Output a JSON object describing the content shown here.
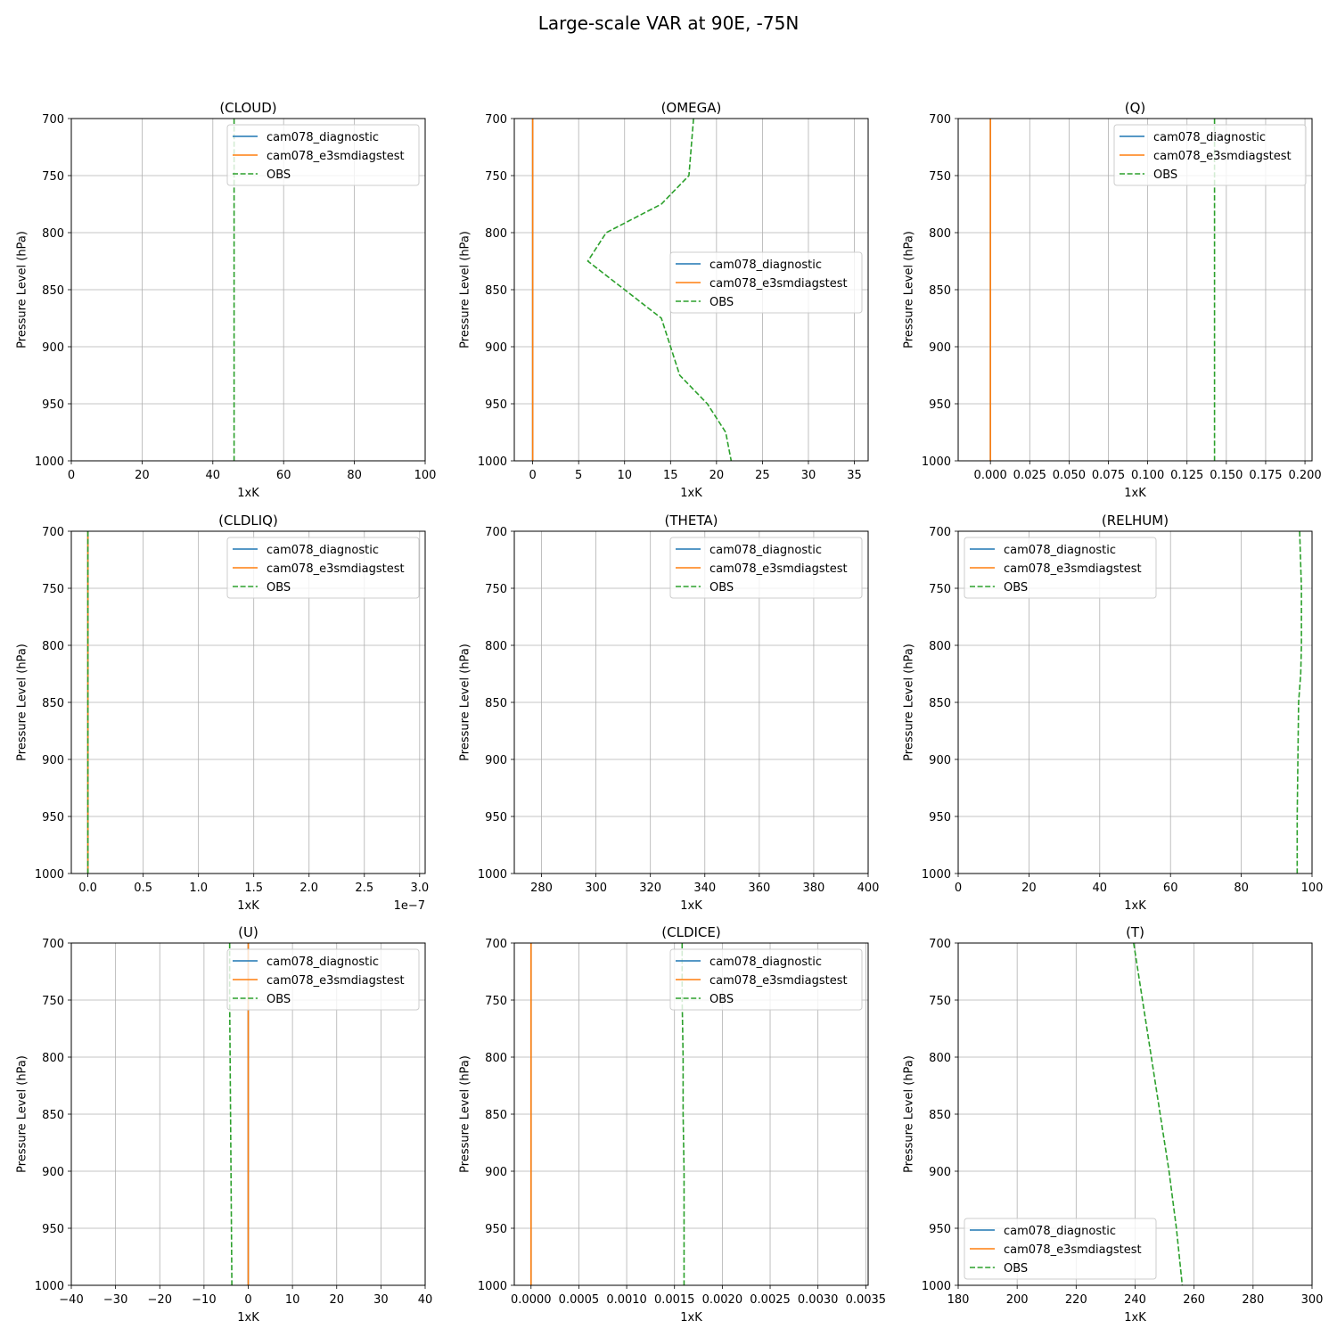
{
  "figure": {
    "title": "Large-scale VAR at 90E, -75N"
  },
  "chart_data": [
    {
      "type": "line",
      "title": "(CLOUD)",
      "xlabel": "1xK",
      "ylabel": "Pressure Level (hPa)",
      "xlim": [
        0,
        100
      ],
      "ylim": [
        1000,
        700
      ],
      "xticks": [
        0,
        20,
        40,
        60,
        80,
        100
      ],
      "xticklabels": [
        "0",
        "20",
        "40",
        "60",
        "80",
        "100"
      ],
      "yticks": [
        700,
        750,
        800,
        850,
        900,
        950,
        1000
      ],
      "yticklabels": [
        "700",
        "750",
        "800",
        "850",
        "900",
        "950",
        "1000"
      ],
      "offset_label": "",
      "grid": true,
      "legend": {
        "loc": "upper-right",
        "entries": [
          "cam078_diagnostic",
          "cam078_e3smdiagstest",
          "OBS"
        ]
      },
      "series": [
        {
          "name": "OBS",
          "style": "dashed",
          "color": "#2ca02c",
          "x": [
            46,
            46,
            46,
            46,
            46,
            46,
            46,
            46,
            46,
            46,
            46,
            46,
            46
          ],
          "y": [
            700,
            725,
            750,
            775,
            800,
            825,
            850,
            875,
            900,
            925,
            950,
            975,
            1000
          ]
        }
      ]
    },
    {
      "type": "line",
      "title": "(OMEGA)",
      "xlabel": "1xK",
      "ylabel": "Pressure Level (hPa)",
      "xlim": [
        -2,
        36.5
      ],
      "ylim": [
        1000,
        700
      ],
      "xticks": [
        0,
        5,
        10,
        15,
        20,
        25,
        30,
        35
      ],
      "xticklabels": [
        "0",
        "5",
        "10",
        "15",
        "20",
        "25",
        "30",
        "35"
      ],
      "yticks": [
        700,
        750,
        800,
        850,
        900,
        950,
        1000
      ],
      "yticklabels": [
        "700",
        "750",
        "800",
        "850",
        "900",
        "950",
        "1000"
      ],
      "offset_label": "",
      "grid": true,
      "legend": {
        "loc": "center-right",
        "entries": [
          "cam078_diagnostic",
          "cam078_e3smdiagstest",
          "OBS"
        ]
      },
      "series": [
        {
          "name": "cam078_diagnostic",
          "style": "solid",
          "color": "#1f77b4",
          "x": [
            0,
            0
          ],
          "y": [
            700,
            1000
          ]
        },
        {
          "name": "cam078_e3smdiagstest",
          "style": "solid",
          "color": "#ff7f0e",
          "x": [
            0,
            0
          ],
          "y": [
            700,
            1000
          ]
        },
        {
          "name": "OBS",
          "style": "dashed",
          "color": "#2ca02c",
          "x": [
            17.5,
            17,
            14,
            8,
            6,
            10,
            14,
            15,
            16,
            19,
            21,
            21.6
          ],
          "y": [
            700,
            750,
            775,
            800,
            825,
            850,
            875,
            900,
            925,
            950,
            975,
            1000
          ]
        }
      ]
    },
    {
      "type": "line",
      "title": "(Q)",
      "xlabel": "1xK",
      "ylabel": "Pressure Level (hPa)",
      "xlim": [
        -0.0205,
        0.2045
      ],
      "ylim": [
        1000,
        700
      ],
      "xticks": [
        0,
        0.025,
        0.05,
        0.075,
        0.1,
        0.125,
        0.15,
        0.175,
        0.2
      ],
      "xticklabels": [
        "0.000",
        "0.025",
        "0.050",
        "0.075",
        "0.100",
        "0.125",
        "0.150",
        "0.175",
        "0.200"
      ],
      "yticks": [
        700,
        750,
        800,
        850,
        900,
        950,
        1000
      ],
      "yticklabels": [
        "700",
        "750",
        "800",
        "850",
        "900",
        "950",
        "1000"
      ],
      "offset_label": "",
      "grid": true,
      "legend": {
        "loc": "upper-right",
        "entries": [
          "cam078_diagnostic",
          "cam078_e3smdiagstest",
          "OBS"
        ]
      },
      "series": [
        {
          "name": "cam078_diagnostic",
          "style": "solid",
          "color": "#1f77b4",
          "x": [
            0,
            0
          ],
          "y": [
            700,
            1000
          ]
        },
        {
          "name": "cam078_e3smdiagstest",
          "style": "solid",
          "color": "#ff7f0e",
          "x": [
            0,
            0
          ],
          "y": [
            700,
            1000
          ]
        },
        {
          "name": "OBS",
          "style": "dashed",
          "color": "#2ca02c",
          "x": [
            0.1425,
            0.1425,
            0.1425,
            0.1425,
            0.1425,
            0.1425,
            0.1425
          ],
          "y": [
            700,
            750,
            800,
            850,
            900,
            950,
            1000
          ]
        }
      ]
    },
    {
      "type": "line",
      "title": "(CLDLIQ)",
      "xlabel": "1xK",
      "ylabel": "Pressure Level (hPa)",
      "xlim": [
        -1.5e-08,
        3.05e-07
      ],
      "ylim": [
        1000,
        700
      ],
      "xticks": [
        0,
        5e-08,
        1e-07,
        1.5e-07,
        2e-07,
        2.5e-07,
        3e-07
      ],
      "xticklabels": [
        "0.0",
        "0.5",
        "1.0",
        "1.5",
        "2.0",
        "2.5",
        "3.0"
      ],
      "yticks": [
        700,
        750,
        800,
        850,
        900,
        950,
        1000
      ],
      "yticklabels": [
        "700",
        "750",
        "800",
        "850",
        "900",
        "950",
        "1000"
      ],
      "offset_label": "1e−7",
      "grid": true,
      "legend": {
        "loc": "upper-right",
        "entries": [
          "cam078_diagnostic",
          "cam078_e3smdiagstest",
          "OBS"
        ]
      },
      "series": [
        {
          "name": "cam078_diagnostic",
          "style": "solid",
          "color": "#1f77b4",
          "x": [
            0,
            0
          ],
          "y": [
            700,
            1000
          ]
        },
        {
          "name": "cam078_e3smdiagstest",
          "style": "solid",
          "color": "#ff7f0e",
          "x": [
            0,
            0
          ],
          "y": [
            700,
            1000
          ]
        },
        {
          "name": "OBS",
          "style": "dashed",
          "color": "#2ca02c",
          "x": [
            0,
            0,
            0,
            0,
            0,
            0,
            0
          ],
          "y": [
            700,
            750,
            800,
            850,
            900,
            950,
            1000
          ]
        }
      ]
    },
    {
      "type": "line",
      "title": "(THETA)",
      "xlabel": "1xK",
      "ylabel": "Pressure Level (hPa)",
      "xlim": [
        270,
        400
      ],
      "ylim": [
        1000,
        700
      ],
      "xticks": [
        280,
        300,
        320,
        340,
        360,
        380,
        400
      ],
      "xticklabels": [
        "280",
        "300",
        "320",
        "340",
        "360",
        "380",
        "400"
      ],
      "yticks": [
        700,
        750,
        800,
        850,
        900,
        950,
        1000
      ],
      "yticklabels": [
        "700",
        "750",
        "800",
        "850",
        "900",
        "950",
        "1000"
      ],
      "offset_label": "",
      "grid": true,
      "legend": {
        "loc": "upper-right",
        "entries": [
          "cam078_diagnostic",
          "cam078_e3smdiagstest",
          "OBS"
        ]
      },
      "series": []
    },
    {
      "type": "line",
      "title": "(RELHUM)",
      "xlabel": "1xK",
      "ylabel": "Pressure Level (hPa)",
      "xlim": [
        0,
        100
      ],
      "ylim": [
        1000,
        700
      ],
      "xticks": [
        0,
        20,
        40,
        60,
        80,
        100
      ],
      "xticklabels": [
        "0",
        "20",
        "40",
        "60",
        "80",
        "100"
      ],
      "yticks": [
        700,
        750,
        800,
        850,
        900,
        950,
        1000
      ],
      "yticklabels": [
        "700",
        "750",
        "800",
        "850",
        "900",
        "950",
        "1000"
      ],
      "offset_label": "",
      "grid": true,
      "legend": {
        "loc": "upper-left",
        "entries": [
          "cam078_diagnostic",
          "cam078_e3smdiagstest",
          "OBS"
        ]
      },
      "series": [
        {
          "name": "OBS",
          "style": "dashed",
          "color": "#2ca02c",
          "x": [
            96.5,
            97,
            97,
            96.8,
            96.2,
            96,
            95.8,
            95.8
          ],
          "y": [
            700,
            750,
            800,
            825,
            850,
            900,
            950,
            1000
          ]
        }
      ]
    },
    {
      "type": "line",
      "title": "(U)",
      "xlabel": "1xK",
      "ylabel": "Pressure Level (hPa)",
      "xlim": [
        -40,
        40
      ],
      "ylim": [
        1000,
        700
      ],
      "xticks": [
        -40,
        -30,
        -20,
        -10,
        0,
        10,
        20,
        30,
        40
      ],
      "xticklabels": [
        "−40",
        "−30",
        "−20",
        "−10",
        "0",
        "10",
        "20",
        "30",
        "40"
      ],
      "yticks": [
        700,
        750,
        800,
        850,
        900,
        950,
        1000
      ],
      "yticklabels": [
        "700",
        "750",
        "800",
        "850",
        "900",
        "950",
        "1000"
      ],
      "offset_label": "",
      "grid": true,
      "legend": {
        "loc": "upper-right",
        "entries": [
          "cam078_diagnostic",
          "cam078_e3smdiagstest",
          "OBS"
        ]
      },
      "series": [
        {
          "name": "cam078_diagnostic",
          "style": "solid",
          "color": "#1f77b4",
          "x": [
            0,
            0
          ],
          "y": [
            700,
            1000
          ]
        },
        {
          "name": "cam078_e3smdiagstest",
          "style": "solid",
          "color": "#ff7f0e",
          "x": [
            0,
            0
          ],
          "y": [
            700,
            1000
          ]
        },
        {
          "name": "OBS",
          "style": "dashed",
          "color": "#2ca02c",
          "x": [
            -4.2,
            -4.2,
            -4.1,
            -4.0,
            -3.9,
            -3.8,
            -3.7
          ],
          "y": [
            700,
            750,
            800,
            850,
            900,
            950,
            1000
          ]
        }
      ]
    },
    {
      "type": "line",
      "title": "(CLDICE)",
      "xlabel": "1xK",
      "ylabel": "Pressure Level (hPa)",
      "xlim": [
        -0.000175,
        0.003525
      ],
      "ylim": [
        1000,
        700
      ],
      "xticks": [
        0,
        0.0005,
        0.001,
        0.0015,
        0.002,
        0.0025,
        0.003,
        0.0035
      ],
      "xticklabels": [
        "0.0000",
        "0.0005",
        "0.0010",
        "0.0015",
        "0.0020",
        "0.0025",
        "0.0030",
        "0.0035"
      ],
      "yticks": [
        700,
        750,
        800,
        850,
        900,
        950,
        1000
      ],
      "yticklabels": [
        "700",
        "750",
        "800",
        "850",
        "900",
        "950",
        "1000"
      ],
      "offset_label": "",
      "grid": true,
      "legend": {
        "loc": "upper-right",
        "entries": [
          "cam078_diagnostic",
          "cam078_e3smdiagstest",
          "OBS"
        ]
      },
      "series": [
        {
          "name": "cam078_diagnostic",
          "style": "solid",
          "color": "#1f77b4",
          "x": [
            0,
            0
          ],
          "y": [
            700,
            1000
          ]
        },
        {
          "name": "cam078_e3smdiagstest",
          "style": "solid",
          "color": "#ff7f0e",
          "x": [
            0,
            0
          ],
          "y": [
            700,
            1000
          ]
        },
        {
          "name": "OBS",
          "style": "dashed",
          "color": "#2ca02c",
          "x": [
            0.00158,
            0.00158,
            0.00159,
            0.00159,
            0.0016,
            0.0016,
            0.0016
          ],
          "y": [
            700,
            750,
            800,
            850,
            900,
            950,
            1000
          ]
        }
      ]
    },
    {
      "type": "line",
      "title": "(T)",
      "xlabel": "1xK",
      "ylabel": "Pressure Level (hPa)",
      "xlim": [
        180,
        300
      ],
      "ylim": [
        1000,
        700
      ],
      "xticks": [
        180,
        200,
        220,
        240,
        260,
        280,
        300
      ],
      "xticklabels": [
        "180",
        "200",
        "220",
        "240",
        "260",
        "280",
        "300"
      ],
      "yticks": [
        700,
        750,
        800,
        850,
        900,
        950,
        1000
      ],
      "yticklabels": [
        "700",
        "750",
        "800",
        "850",
        "900",
        "950",
        "1000"
      ],
      "offset_label": "",
      "grid": true,
      "legend": {
        "loc": "lower-left",
        "entries": [
          "cam078_diagnostic",
          "cam078_e3smdiagstest",
          "OBS"
        ]
      },
      "series": [
        {
          "name": "OBS",
          "style": "dashed",
          "color": "#2ca02c",
          "x": [
            239.5,
            242.5,
            245.5,
            248.5,
            251.5,
            254,
            256
          ],
          "y": [
            700,
            750,
            800,
            850,
            900,
            950,
            1000
          ]
        }
      ]
    }
  ]
}
